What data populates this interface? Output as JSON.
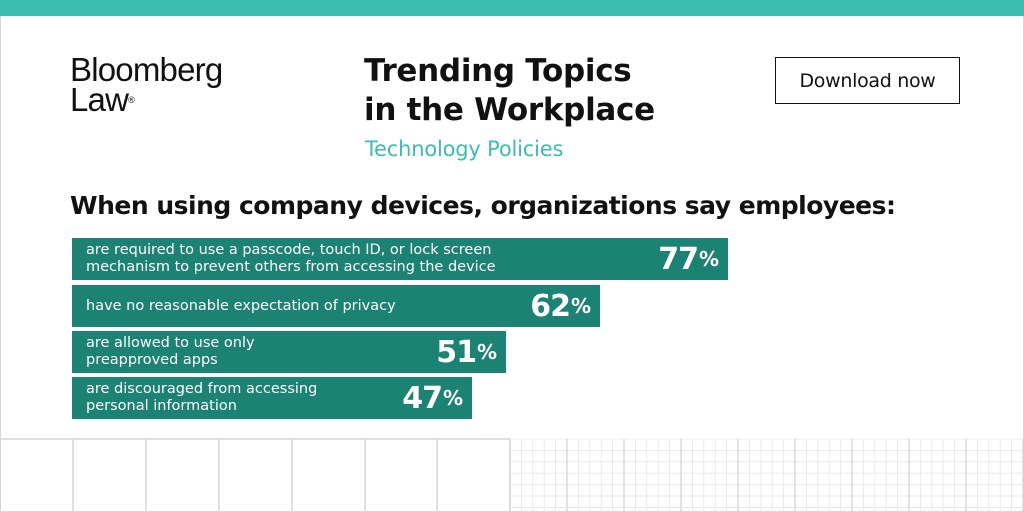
{
  "brand": {
    "line1": "Bloomberg",
    "line2": "Law",
    "mark": "®"
  },
  "header": {
    "title_line1": "Trending Topics",
    "title_line2": "in the Workplace",
    "subtitle": "Technology Policies"
  },
  "cta": {
    "download_label": "Download now"
  },
  "colors": {
    "accent": "#3dbdb0",
    "bar": "#1c8273",
    "text": "#111111"
  },
  "chart_data": {
    "type": "bar",
    "orientation": "horizontal",
    "title": "When using company devices, organizations say employees:",
    "unit": "%",
    "xlim": [
      0,
      100
    ],
    "categories": [
      "are required to use a passcode, touch ID, or lock screen mechanism to prevent others from accessing the device",
      "have no reasonable expectation of privacy",
      "are allowed to use only preapproved apps",
      "are discouraged from accessing personal information"
    ],
    "label_lines": [
      [
        "are required to use a passcode, touch ID, or lock screen",
        "mechanism to prevent others from accessing the device"
      ],
      [
        "have no reasonable expectation of privacy"
      ],
      [
        "are allowed to use only",
        "preapproved apps"
      ],
      [
        "are discouraged from accessing",
        "personal information"
      ]
    ],
    "values": [
      77,
      62,
      51,
      47
    ]
  }
}
